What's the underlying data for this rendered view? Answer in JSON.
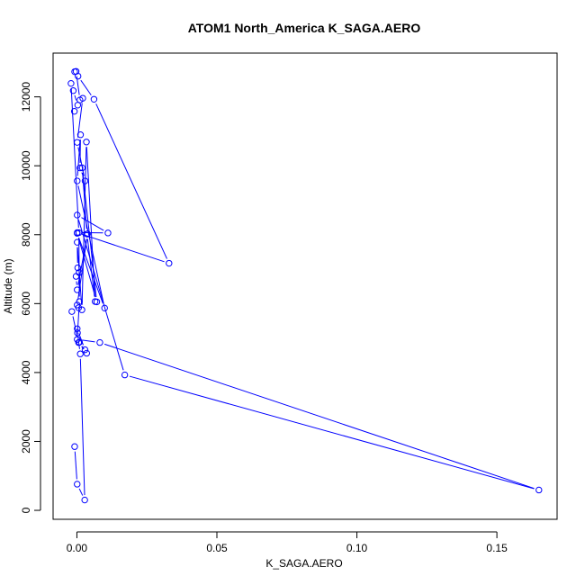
{
  "chart_data": {
    "type": "line",
    "title": "ATOM1 North_America K_SAGA.AERO",
    "xlabel": "K_SAGA.AERO",
    "ylabel": "Altitude (m)",
    "xlim": [
      -0.0085,
      0.1715
    ],
    "ylim": [
      -260,
      13270
    ],
    "x_ticks": [
      0,
      0.05,
      0.1,
      0.15
    ],
    "x_tick_labels": [
      "0.00",
      "0.05",
      "0.10",
      "0.15"
    ],
    "y_ticks": [
      0,
      2000,
      4000,
      6000,
      8000,
      10000,
      12000
    ],
    "y_tick_labels": [
      "0",
      "2000",
      "4000",
      "6000",
      "8000",
      "10000",
      "12000"
    ],
    "series_color": "#0000ff",
    "marker": "open-circle",
    "grid": false,
    "legend": "none",
    "series": [
      {
        "x": [
          -0.0008,
          0.0001,
          0.0028,
          0.0012,
          0.0002,
          0.0001,
          0.0029,
          0.0009,
          0.0035,
          0.0006,
          -0.0018,
          0.0006,
          0.0001,
          0.0038,
          0.0001,
          -0.0003,
          0.0008,
          0.0003,
          0.0001,
          0.0018,
          0.0034,
          0.0065,
          0.0036,
          0.0019,
          0.0071,
          0.0001,
          0.0099,
          0.0001,
          0.0013,
          0.0011,
          0.0029,
          0.0001,
          0.0021,
          0.0011,
          -0.0003,
          -0.0008,
          0.0004,
          0.0061,
          0.0329,
          0.0001,
          0.0111,
          0.0001,
          0.0171,
          0.165,
          0.0082,
          0.0001,
          0.0009,
          0.0007,
          -0.0021,
          -0.0013,
          0.0003,
          -0.0009
        ],
        "y": [
          1850,
          760,
          300,
          4540,
          5150,
          5270,
          4660,
          4880,
          4560,
          4870,
          5770,
          5880,
          5960,
          8020,
          6400,
          6790,
          6900,
          7040,
          7780,
          5820,
          10690,
          6060,
          8020,
          9940,
          6050,
          8040,
          5870,
          9560,
          10900,
          9940,
          9560,
          10680,
          11960,
          11910,
          12740,
          12730,
          12600,
          11930,
          7170,
          8060,
          8050,
          8570,
          3930,
          590,
          4870,
          4960,
          6060,
          8060,
          12390,
          12180,
          11760,
          11580
        ]
      }
    ]
  }
}
